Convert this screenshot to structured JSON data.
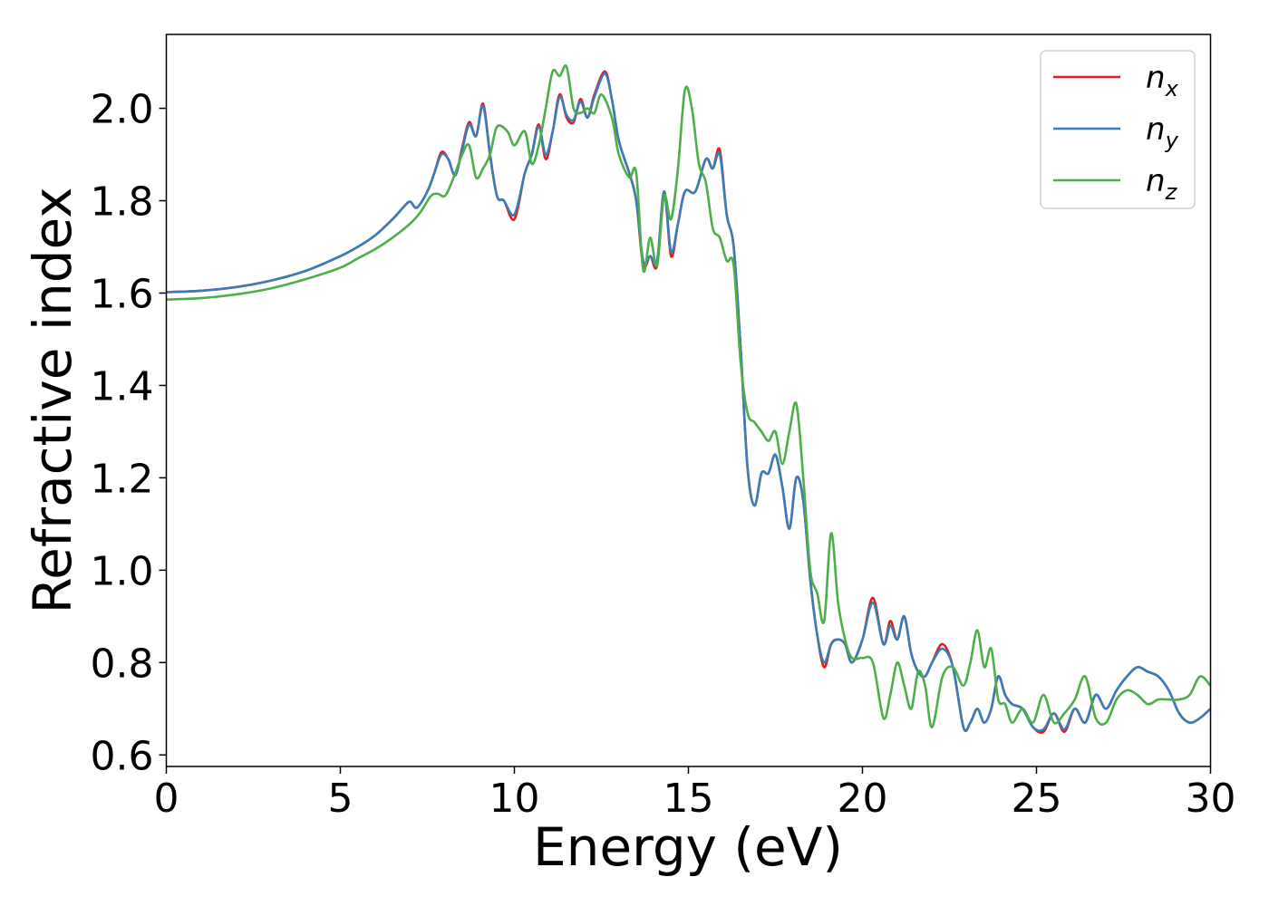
{
  "chart_data": {
    "type": "line",
    "xlabel": "Energy (eV)",
    "ylabel": "Refractive index",
    "xlim": [
      0,
      30
    ],
    "ylim": [
      0.575,
      2.16
    ],
    "xticks": [
      0,
      5,
      10,
      15,
      20,
      25,
      30
    ],
    "xtick_labels": [
      "0",
      "5",
      "10",
      "15",
      "20",
      "25",
      "30"
    ],
    "yticks": [
      0.6,
      0.8,
      1.0,
      1.2,
      1.4,
      1.6,
      1.8,
      2.0
    ],
    "ytick_labels": [
      "0.6",
      "0.8",
      "1.0",
      "1.2",
      "1.4",
      "1.6",
      "1.8",
      "2.0"
    ],
    "grid": false,
    "legend_position": "top-right",
    "series": [
      {
        "name": "n",
        "subscript": "x",
        "color": "#e41a1c",
        "x": [
          0,
          1,
          2,
          3,
          4,
          5,
          5.5,
          6,
          6.5,
          6.8,
          7.0,
          7.2,
          7.5,
          7.7,
          7.9,
          8.1,
          8.3,
          8.5,
          8.7,
          8.9,
          9.1,
          9.3,
          9.5,
          9.7,
          10.0,
          10.3,
          10.5,
          10.7,
          10.9,
          11.1,
          11.3,
          11.5,
          11.7,
          11.9,
          12.1,
          12.3,
          12.6,
          12.8,
          13.0,
          13.3,
          13.5,
          13.7,
          13.9,
          14.1,
          14.3,
          14.5,
          14.7,
          14.9,
          15.2,
          15.5,
          15.7,
          15.9,
          16.1,
          16.3,
          16.5,
          16.7,
          16.9,
          17.1,
          17.3,
          17.5,
          17.7,
          17.9,
          18.1,
          18.3,
          18.5,
          18.7,
          18.9,
          19.1,
          19.3,
          19.5,
          19.7,
          20.0,
          20.3,
          20.6,
          20.8,
          21.0,
          21.2,
          21.4,
          21.6,
          21.8,
          22.0,
          22.3,
          22.6,
          22.9,
          23.1,
          23.3,
          23.5,
          23.7,
          23.9,
          24.1,
          24.3,
          24.6,
          24.9,
          25.2,
          25.5,
          25.8,
          26.1,
          26.4,
          26.7,
          27.0,
          27.3,
          27.6,
          27.9,
          28.2,
          28.5,
          28.8,
          29.1,
          29.4,
          29.7,
          30.0
        ],
        "y": [
          1.602,
          1.605,
          1.613,
          1.627,
          1.648,
          1.68,
          1.7,
          1.725,
          1.76,
          1.785,
          1.798,
          1.785,
          1.82,
          1.86,
          1.905,
          1.89,
          1.855,
          1.915,
          1.97,
          1.94,
          2.01,
          1.9,
          1.81,
          1.8,
          1.76,
          1.86,
          1.9,
          1.965,
          1.89,
          1.95,
          2.03,
          1.98,
          1.97,
          2.02,
          1.98,
          2.03,
          2.08,
          2.02,
          1.93,
          1.86,
          1.8,
          1.66,
          1.68,
          1.66,
          1.82,
          1.68,
          1.75,
          1.82,
          1.82,
          1.89,
          1.87,
          1.91,
          1.77,
          1.7,
          1.48,
          1.22,
          1.14,
          1.21,
          1.21,
          1.25,
          1.18,
          1.09,
          1.2,
          1.15,
          0.98,
          0.86,
          0.79,
          0.84,
          0.85,
          0.84,
          0.8,
          0.85,
          0.94,
          0.84,
          0.89,
          0.85,
          0.9,
          0.82,
          0.78,
          0.77,
          0.8,
          0.84,
          0.79,
          0.66,
          0.67,
          0.7,
          0.67,
          0.7,
          0.77,
          0.73,
          0.71,
          0.7,
          0.66,
          0.65,
          0.69,
          0.65,
          0.7,
          0.67,
          0.73,
          0.7,
          0.74,
          0.77,
          0.79,
          0.78,
          0.77,
          0.74,
          0.69,
          0.67,
          0.68,
          0.7
        ]
      },
      {
        "name": "n",
        "subscript": "y",
        "color": "#377eb8",
        "x": [
          0,
          1,
          2,
          3,
          4,
          5,
          5.5,
          6,
          6.5,
          6.8,
          7.0,
          7.2,
          7.5,
          7.7,
          7.9,
          8.1,
          8.3,
          8.5,
          8.7,
          8.9,
          9.1,
          9.3,
          9.5,
          9.7,
          10.0,
          10.3,
          10.5,
          10.7,
          10.9,
          11.1,
          11.3,
          11.5,
          11.7,
          11.9,
          12.1,
          12.3,
          12.6,
          12.8,
          13.0,
          13.3,
          13.5,
          13.7,
          13.9,
          14.1,
          14.3,
          14.5,
          14.7,
          14.9,
          15.2,
          15.5,
          15.7,
          15.9,
          16.1,
          16.3,
          16.5,
          16.7,
          16.9,
          17.1,
          17.3,
          17.5,
          17.7,
          17.9,
          18.1,
          18.3,
          18.5,
          18.7,
          18.9,
          19.1,
          19.3,
          19.5,
          19.7,
          20.0,
          20.3,
          20.6,
          20.8,
          21.0,
          21.2,
          21.4,
          21.6,
          21.8,
          22.0,
          22.3,
          22.6,
          22.9,
          23.1,
          23.3,
          23.5,
          23.7,
          23.9,
          24.1,
          24.3,
          24.6,
          24.9,
          25.2,
          25.5,
          25.8,
          26.1,
          26.4,
          26.7,
          27.0,
          27.3,
          27.6,
          27.9,
          28.2,
          28.5,
          28.8,
          29.1,
          29.4,
          29.7,
          30.0
        ],
        "y": [
          1.602,
          1.605,
          1.613,
          1.627,
          1.648,
          1.68,
          1.7,
          1.725,
          1.76,
          1.785,
          1.798,
          1.785,
          1.82,
          1.86,
          1.9,
          1.89,
          1.855,
          1.91,
          1.965,
          1.94,
          2.005,
          1.9,
          1.81,
          1.8,
          1.77,
          1.86,
          1.9,
          1.96,
          1.9,
          1.95,
          2.025,
          1.985,
          1.975,
          2.015,
          1.98,
          2.025,
          2.075,
          2.02,
          1.93,
          1.86,
          1.8,
          1.67,
          1.68,
          1.67,
          1.82,
          1.69,
          1.75,
          1.82,
          1.82,
          1.89,
          1.87,
          1.9,
          1.77,
          1.7,
          1.48,
          1.22,
          1.14,
          1.21,
          1.21,
          1.25,
          1.18,
          1.09,
          1.2,
          1.15,
          0.98,
          0.86,
          0.8,
          0.84,
          0.85,
          0.84,
          0.8,
          0.85,
          0.93,
          0.84,
          0.88,
          0.85,
          0.9,
          0.82,
          0.78,
          0.77,
          0.8,
          0.83,
          0.79,
          0.66,
          0.67,
          0.7,
          0.67,
          0.7,
          0.77,
          0.73,
          0.71,
          0.7,
          0.66,
          0.655,
          0.69,
          0.655,
          0.7,
          0.67,
          0.73,
          0.7,
          0.74,
          0.77,
          0.79,
          0.78,
          0.77,
          0.74,
          0.69,
          0.67,
          0.68,
          0.7
        ]
      },
      {
        "name": "n",
        "subscript": "z",
        "color": "#4daf4a",
        "x": [
          0,
          1,
          2,
          3,
          4,
          5,
          5.5,
          6,
          6.5,
          7.0,
          7.3,
          7.6,
          7.8,
          8.0,
          8.2,
          8.5,
          8.7,
          8.9,
          9.1,
          9.3,
          9.5,
          9.8,
          10.0,
          10.3,
          10.5,
          10.7,
          10.9,
          11.1,
          11.3,
          11.5,
          11.7,
          11.9,
          12.1,
          12.3,
          12.5,
          12.8,
          13.0,
          13.3,
          13.5,
          13.7,
          13.9,
          14.1,
          14.3,
          14.5,
          14.7,
          14.9,
          15.1,
          15.3,
          15.5,
          15.7,
          15.9,
          16.1,
          16.3,
          16.5,
          16.7,
          16.9,
          17.1,
          17.3,
          17.5,
          17.7,
          17.9,
          18.1,
          18.3,
          18.5,
          18.7,
          18.9,
          19.1,
          19.3,
          19.5,
          19.7,
          20.0,
          20.3,
          20.6,
          20.8,
          21.0,
          21.2,
          21.4,
          21.6,
          21.8,
          22.0,
          22.3,
          22.6,
          22.9,
          23.1,
          23.3,
          23.5,
          23.7,
          23.9,
          24.1,
          24.3,
          24.6,
          24.9,
          25.2,
          25.5,
          25.8,
          26.1,
          26.4,
          26.7,
          27.0,
          27.3,
          27.6,
          27.9,
          28.2,
          28.5,
          28.8,
          29.1,
          29.4,
          29.7,
          30.0
        ],
        "y": [
          1.586,
          1.589,
          1.597,
          1.61,
          1.63,
          1.655,
          1.675,
          1.695,
          1.72,
          1.75,
          1.775,
          1.81,
          1.815,
          1.81,
          1.84,
          1.9,
          1.92,
          1.85,
          1.87,
          1.9,
          1.96,
          1.95,
          1.92,
          1.95,
          1.88,
          1.92,
          2.0,
          2.08,
          2.07,
          2.09,
          2.0,
          1.99,
          2.0,
          1.99,
          2.03,
          1.98,
          1.9,
          1.85,
          1.86,
          1.65,
          1.72,
          1.66,
          1.81,
          1.76,
          1.87,
          2.04,
          2.0,
          1.88,
          1.84,
          1.74,
          1.72,
          1.67,
          1.66,
          1.45,
          1.34,
          1.32,
          1.3,
          1.28,
          1.3,
          1.23,
          1.3,
          1.36,
          1.2,
          1.0,
          0.95,
          0.89,
          1.08,
          0.93,
          0.85,
          0.81,
          0.81,
          0.8,
          0.68,
          0.73,
          0.8,
          0.75,
          0.7,
          0.78,
          0.75,
          0.66,
          0.77,
          0.79,
          0.75,
          0.8,
          0.87,
          0.79,
          0.83,
          0.72,
          0.71,
          0.67,
          0.7,
          0.67,
          0.73,
          0.67,
          0.69,
          0.72,
          0.77,
          0.68,
          0.67,
          0.72,
          0.74,
          0.73,
          0.71,
          0.72,
          0.72,
          0.72,
          0.73,
          0.77,
          0.75
        ]
      }
    ]
  }
}
